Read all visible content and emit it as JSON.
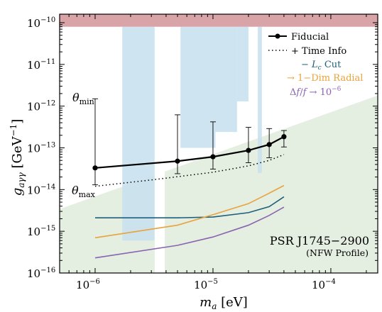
{
  "chart_data": {
    "type": "line",
    "xscale": "log",
    "yscale": "log",
    "xlim": [
      5e-07,
      0.00025
    ],
    "ylim": [
      1e-16,
      1.6e-10
    ],
    "xlabel": "m_a [eV]",
    "ylabel": "g_aγγ [GeV^-1]",
    "x_ticks": [
      {
        "exp": "−6",
        "value": 1e-06
      },
      {
        "exp": "−5",
        "value": 1e-05
      },
      {
        "exp": "−4",
        "value": 0.0001
      }
    ],
    "y_ticks": [
      {
        "exp": "−16",
        "value": 1e-16
      },
      {
        "exp": "−15",
        "value": 1e-15
      },
      {
        "exp": "−14",
        "value": 1e-14
      },
      {
        "exp": "−13",
        "value": 1e-13
      },
      {
        "exp": "−12",
        "value": 1e-12
      },
      {
        "exp": "−11",
        "value": 1e-11
      },
      {
        "exp": "−10",
        "value": 1e-10
      }
    ],
    "legend_position": "top-right",
    "series": [
      {
        "name": "Fiducial",
        "style": "solid-markers",
        "color": "#000000",
        "x": [
          1e-06,
          5e-06,
          1e-05,
          2e-05,
          3e-05,
          4e-05
        ],
        "y": [
          3.3e-14,
          4.8e-14,
          6.1e-14,
          8.7e-14,
          1.2e-13,
          1.85e-13
        ],
        "err_low": [
          1.3e-14,
          2.4e-14,
          3.1e-14,
          4.4e-14,
          5.8e-14,
          1.05e-13
        ],
        "err_high": [
          1.5e-12,
          6.2e-13,
          4.2e-13,
          3.1e-13,
          2.9e-13,
          2.6e-13
        ]
      },
      {
        "name": "+ Time Info",
        "style": "dotted",
        "color": "#000000",
        "x": [
          1e-06,
          3e-06,
          1e-05,
          2e-05,
          3e-05,
          4e-05
        ],
        "y": [
          1.2e-14,
          1.7e-14,
          2.6e-14,
          3.7e-14,
          5e-14,
          6.9e-14
        ]
      },
      {
        "name": "− L_c Cut",
        "style": "solid",
        "color": "#1f5f7a",
        "x": [
          1e-06,
          5e-06,
          1e-05,
          2e-05,
          3e-05,
          4e-05
        ],
        "y": [
          2.1e-15,
          2.1e-15,
          2.2e-15,
          2.8e-15,
          3.9e-15,
          6.7e-15
        ]
      },
      {
        "name": "→ 1−Dim Radial",
        "style": "solid",
        "color": "#e8a33d",
        "x": [
          1e-06,
          5e-06,
          1e-05,
          2e-05,
          3e-05,
          4e-05
        ],
        "y": [
          7e-16,
          1.4e-15,
          2.5e-15,
          4.6e-15,
          8.2e-15,
          1.25e-14
        ]
      },
      {
        "name": "Δf/f → 10^-6",
        "style": "solid",
        "color": "#8a63b0",
        "x": [
          1e-06,
          5e-06,
          1e-05,
          2e-05,
          3e-05,
          4e-05
        ],
        "y": [
          2.3e-16,
          4.6e-16,
          7.3e-16,
          1.4e-15,
          2.4e-15,
          3.8e-15
        ]
      }
    ],
    "regions": [
      {
        "color": "#d8a4a8",
        "desc": "excluded band at top",
        "x": [
          5e-07,
          0.00025
        ],
        "y_low": 8e-11,
        "y_high": 1.6e-10
      },
      {
        "color": "#e3eddf",
        "desc": "green shaded band",
        "x": [
          5e-07,
          0.00025
        ],
        "y_low_at_edges": [
          1e-16,
          1e-16
        ],
        "y_high_at_edges": [
          3.4e-15,
          1.8e-12
        ]
      },
      {
        "color": "#c9e1ef",
        "desc": "light blue exclusion bars"
      }
    ],
    "annotations": {
      "theta_min": {
        "text": "θ",
        "sub": "min"
      },
      "theta_max": {
        "text": "θ",
        "sub": "max"
      },
      "source_name": "PSR J1745−2900",
      "profile": "(NFW Profile)"
    }
  }
}
